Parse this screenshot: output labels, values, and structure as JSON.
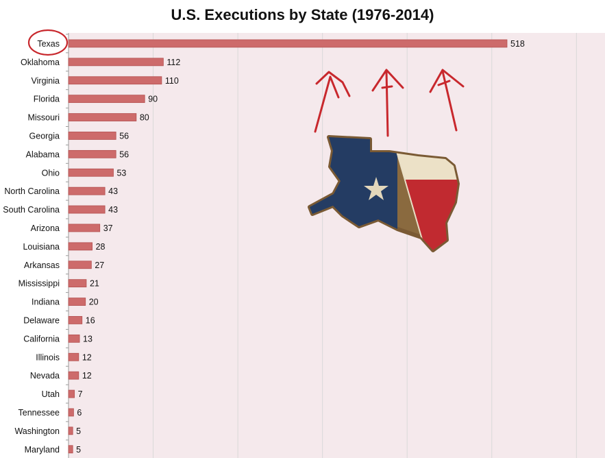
{
  "chart_data": {
    "type": "bar",
    "orientation": "horizontal",
    "title": "U.S. Executions by State (1976-2014)",
    "categories": [
      "Texas",
      "Oklahoma",
      "Virginia",
      "Florida",
      "Missouri",
      "Georgia",
      "Alabama",
      "Ohio",
      "North Carolina",
      "South Carolina",
      "Arizona",
      "Louisiana",
      "Arkansas",
      "Mississippi",
      "Indiana",
      "Delaware",
      "California",
      "Illinois",
      "Nevada",
      "Utah",
      "Tennessee",
      "Washington",
      "Maryland"
    ],
    "values": [
      518,
      112,
      110,
      90,
      80,
      56,
      56,
      53,
      43,
      43,
      37,
      28,
      27,
      21,
      20,
      16,
      13,
      12,
      12,
      7,
      6,
      5,
      5
    ],
    "xlim": [
      0,
      600
    ],
    "grid": true,
    "bar_color": "#cd6b6b",
    "plot_background": "#f5e9ec",
    "highlight_category": "Texas",
    "annotation_color": "#c8282d"
  }
}
